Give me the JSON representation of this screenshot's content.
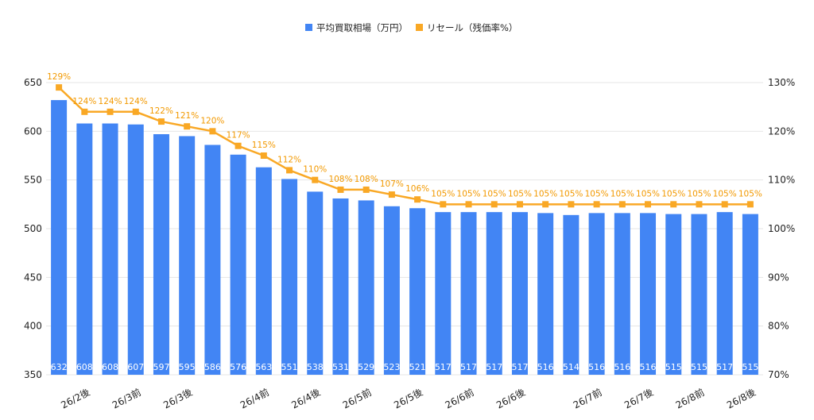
{
  "chart_data": {
    "type": "bar",
    "categories": [
      "",
      "26/2後",
      "",
      "26/3前",
      "",
      "26/3後",
      "",
      "",
      "26/4前",
      "",
      "26/4後",
      "",
      "26/5前",
      "",
      "26/5後",
      "",
      "26/6前",
      "",
      "26/6後",
      "",
      "",
      "26/7前",
      "",
      "26/7後",
      "",
      "26/8前",
      "",
      "26/8後"
    ],
    "series": [
      {
        "name": "平均買取相場（万円）",
        "type": "bar",
        "axis": "left",
        "color": "#4285f4",
        "values": [
          632,
          608,
          608,
          607,
          597,
          595,
          586,
          576,
          563,
          551,
          538,
          531,
          529,
          523,
          521,
          517,
          517,
          517,
          517,
          516,
          514,
          516,
          516,
          516,
          515,
          515,
          517,
          515
        ],
        "labels": [
          "632",
          "608",
          "608",
          "607",
          "597",
          "595",
          "586",
          "576",
          "563",
          "551",
          "538",
          "531",
          "529",
          "523",
          "521",
          "517",
          "517",
          "517",
          "517",
          "516",
          "514",
          "516",
          "516",
          "516",
          "515",
          "515",
          "517",
          "515"
        ]
      },
      {
        "name": "リセール（残価率%）",
        "type": "line",
        "axis": "right",
        "color": "#f9a825",
        "values": [
          129,
          124,
          124,
          124,
          122,
          121,
          120,
          117,
          115,
          112,
          110,
          108,
          108,
          107,
          106,
          105,
          105,
          105,
          105,
          105,
          105,
          105,
          105,
          105,
          105,
          105,
          105,
          105
        ],
        "labels": [
          "129%",
          "124%",
          "124%",
          "124%",
          "122%",
          "121%",
          "120%",
          "117%",
          "115%",
          "112%",
          "110%",
          "108%",
          "108%",
          "107%",
          "106%",
          "105%",
          "105%",
          "105%",
          "105%",
          "105%",
          "105%",
          "105%",
          "105%",
          "105%",
          "105%",
          "105%",
          "105%",
          "105%"
        ]
      }
    ],
    "yleft": {
      "min": 350,
      "max": 650,
      "ticks": [
        350,
        400,
        450,
        500,
        550,
        600,
        650
      ],
      "tick_labels": [
        "350",
        "400",
        "450",
        "500",
        "550",
        "600",
        "650"
      ]
    },
    "yright": {
      "min": 70,
      "max": 130,
      "ticks": [
        70,
        80,
        90,
        100,
        110,
        120,
        130
      ],
      "tick_labels": [
        "70%",
        "80%",
        "90%",
        "100%",
        "110%",
        "120%",
        "130%"
      ]
    },
    "grid": true,
    "legend": "top-center"
  }
}
